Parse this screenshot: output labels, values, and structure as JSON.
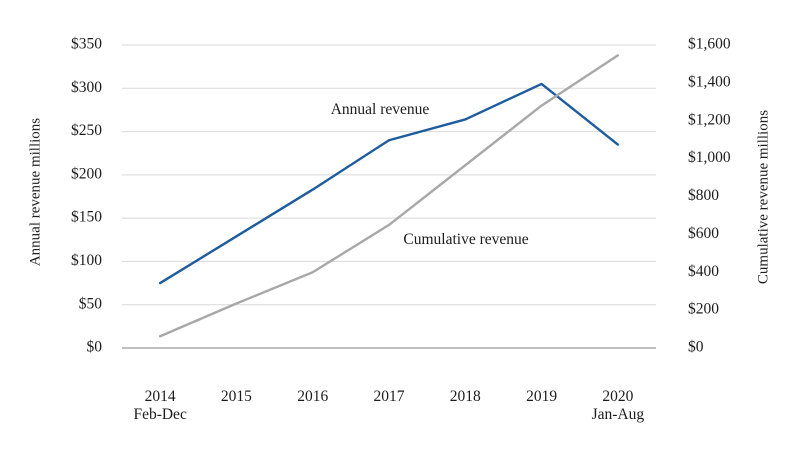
{
  "chart_data": {
    "type": "line",
    "title": "",
    "grid": true,
    "legend_position": "inline-labels",
    "grid_color": "#d9d9d9",
    "axis_line_color": "#808080",
    "text_color": "#1c1c1c",
    "categories": [
      {
        "label": "2014",
        "sublabel": "Feb-Dec"
      },
      {
        "label": "2015",
        "sublabel": ""
      },
      {
        "label": "2016",
        "sublabel": ""
      },
      {
        "label": "2017",
        "sublabel": ""
      },
      {
        "label": "2018",
        "sublabel": ""
      },
      {
        "label": "2019",
        "sublabel": ""
      },
      {
        "label": "2020",
        "sublabel": "Jan-Aug"
      }
    ],
    "left_axis": {
      "title": "Annual revenue millions",
      "min": 0,
      "max": 350,
      "step": 50,
      "tick_labels": [
        "$0",
        "$50",
        "$100",
        "$150",
        "$200",
        "$250",
        "$300",
        "$350"
      ]
    },
    "right_axis": {
      "title": "Cumulative revenue millions",
      "min": 0,
      "max": 1600,
      "step": 200,
      "tick_labels": [
        "$0",
        "$200",
        "$400",
        "$600",
        "$800",
        "$1,000",
        "$1,200",
        "$1,400",
        "$1,600"
      ]
    },
    "series": [
      {
        "name": "Annual revenue",
        "axis": "left",
        "color": "#1f5c9e",
        "values": [
          75,
          129,
          183,
          240,
          264,
          305,
          235
        ]
      },
      {
        "name": "Cumulative revenue",
        "axis": "right",
        "color": "#a8a8a8",
        "values": [
          62,
          235,
          400,
          650,
          965,
          1280,
          1545
        ]
      }
    ]
  }
}
